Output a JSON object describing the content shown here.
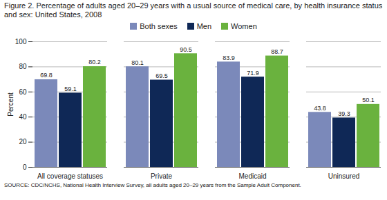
{
  "chart_data": {
    "type": "bar",
    "title": "Figure 2. Percentage of adults aged 20–29 years with a usual source of medical care, by health insurance status and sex: United States, 2008",
    "caption": "SOURCE: CDC/NCHS, National Health Interview Survey, all adults aged 20–29 years from the Sample Adult Component.",
    "y_label": "Percent",
    "categories": [
      "All coverage statuses",
      "Private",
      "Medicaid",
      "Uninsured"
    ],
    "series": [
      {
        "name": "Both sexes",
        "color": "#7b89ba",
        "values": [
          69.8,
          80.1,
          83.9,
          43.8
        ]
      },
      {
        "name": "Men",
        "color": "#0f2856",
        "values": [
          59.1,
          69.5,
          71.9,
          39.3
        ]
      },
      {
        "name": "Women",
        "color": "#6ab23e",
        "values": [
          80.2,
          90.5,
          88.7,
          50.1
        ]
      }
    ],
    "ylim": [
      0,
      100
    ],
    "yticks": [
      0,
      20,
      40,
      60,
      80,
      100
    ],
    "grid": true,
    "legend": "top",
    "data_labels": true
  }
}
